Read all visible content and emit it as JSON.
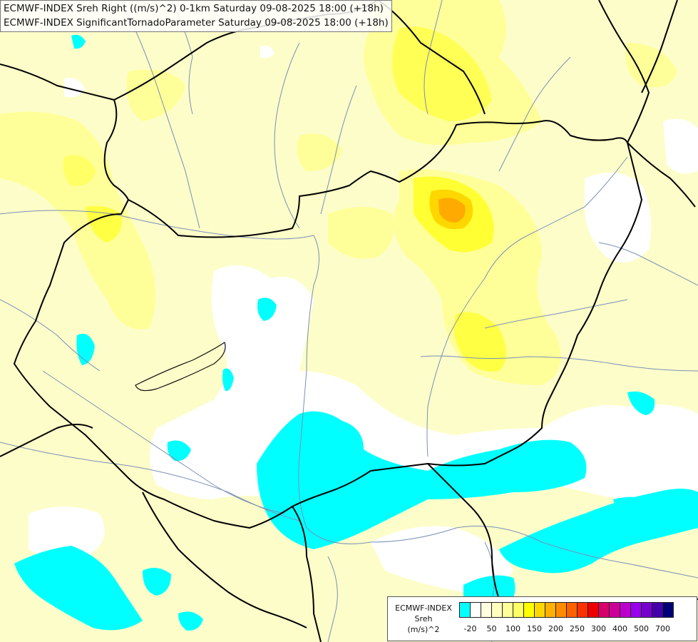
{
  "header": {
    "line1": "ECMWF-INDEX Sreh Right ((m/s)^2) 0-1km Saturday 09-08-2025 18:00 (+18h)",
    "line2": "ECMWF-INDEX SignificantTornadoParameter Saturday 09-08-2025 18:00 (+18h)"
  },
  "legend": {
    "title_line1": "ECMWF-INDEX",
    "title_line2": "Sreh",
    "title_line3": "(m/s)^2",
    "colors": [
      "#00ffff",
      "#ffffff",
      "#ffffe0",
      "#ffffc0",
      "#ffff99",
      "#ffff66",
      "#ffff00",
      "#ffd700",
      "#ffb000",
      "#ff8c00",
      "#ff6000",
      "#ff3000",
      "#ee0000",
      "#d8006a",
      "#cc0099",
      "#bb00cc",
      "#9900ee",
      "#7700cc",
      "#4400aa",
      "#000077"
    ],
    "ticks": [
      "-20",
      "50",
      "100",
      "150",
      "200",
      "250",
      "300",
      "400",
      "500",
      "700"
    ]
  }
}
